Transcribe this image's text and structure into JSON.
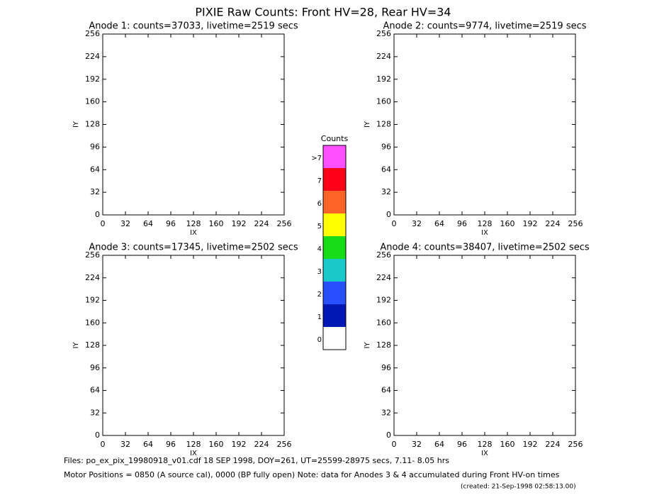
{
  "title": "PIXIE Raw Counts:  Front HV=28, Rear HV=34",
  "chart_data": [
    {
      "type": "heatmap",
      "title": "Anode 1: counts=37033, livetime=2519 secs",
      "x_label": "IX",
      "y_label": "IY",
      "xlim": [
        0,
        256
      ],
      "ylim": [
        0,
        256
      ],
      "xticks": [
        0,
        32,
        64,
        96,
        128,
        160,
        192,
        224,
        256
      ],
      "yticks": [
        0,
        32,
        64,
        96,
        128,
        160,
        192,
        224,
        256
      ]
    },
    {
      "type": "heatmap",
      "title": "Anode 2: counts=9774, livetime=2519 secs",
      "x_label": "IX",
      "y_label": "IY",
      "xlim": [
        0,
        256
      ],
      "ylim": [
        0,
        256
      ],
      "xticks": [
        0,
        32,
        64,
        96,
        128,
        160,
        192,
        224,
        256
      ],
      "yticks": [
        0,
        32,
        64,
        96,
        128,
        160,
        192,
        224,
        256
      ]
    },
    {
      "type": "heatmap",
      "title": "Anode 3: counts=17345, livetime=2502 secs",
      "x_label": "IX",
      "y_label": "IY",
      "xlim": [
        0,
        256
      ],
      "ylim": [
        0,
        256
      ],
      "xticks": [
        0,
        32,
        64,
        96,
        128,
        160,
        192,
        224,
        256
      ],
      "yticks": [
        0,
        32,
        64,
        96,
        128,
        160,
        192,
        224,
        256
      ]
    },
    {
      "type": "heatmap",
      "title": "Anode 4: counts=38407, livetime=2502 secs",
      "x_label": "IX",
      "y_label": "IY",
      "xlim": [
        0,
        256
      ],
      "ylim": [
        0,
        256
      ],
      "xticks": [
        0,
        32,
        64,
        96,
        128,
        160,
        192,
        224,
        256
      ],
      "yticks": [
        0,
        32,
        64,
        96,
        128,
        160,
        192,
        224,
        256
      ]
    }
  ],
  "colorbar": {
    "title": "Counts",
    "labels": [
      0,
      1,
      2,
      3,
      4,
      5,
      6,
      7,
      ">7"
    ],
    "colors": [
      "#ffffff",
      "#0019b4",
      "#2850ff",
      "#19c8c8",
      "#19dc19",
      "#ffff00",
      "#ff6428",
      "#ff0019",
      "#ff50ff"
    ]
  },
  "footer": [
    "Files: po_ex_pix_19980918_v01.cdf    18 SEP 1998, DOY=261, UT=25599-28975 secs,  7.11- 8.05 hrs",
    "Motor Positions = 0850 (A source cal), 0000 (BP fully open)    Note: data for Anodes 3 & 4 accumulated during Front HV-on times",
    "(created: 21-Sep-1998 02:58:13.00)"
  ]
}
